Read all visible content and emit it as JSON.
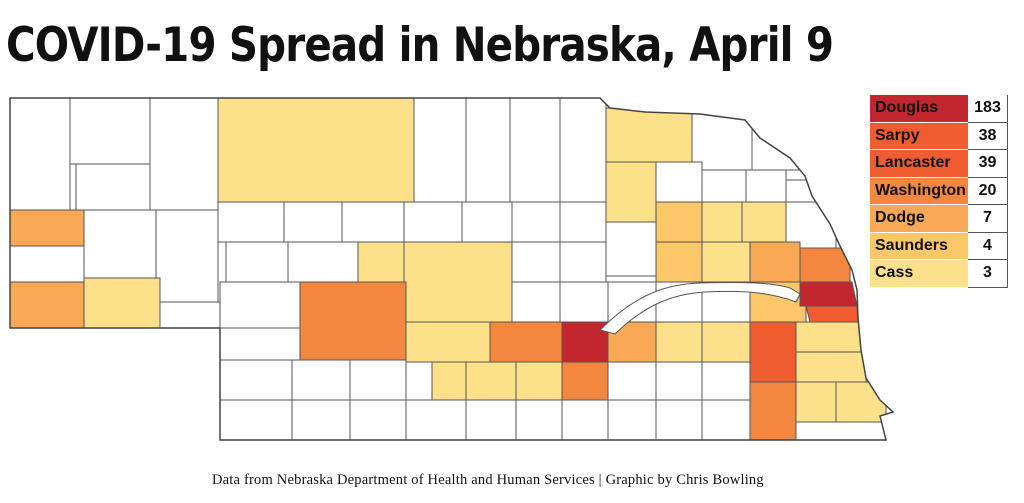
{
  "title": "COVID-19 Spread in Nebraska, April 9",
  "footer": "Data from Nebraska Department of Health and Human Services | Graphic by Chris Bowling",
  "colors": {
    "douglas": "#c1272d",
    "sarpy": "#ee5c2f",
    "lancaster": "#ee5c2f",
    "washington": "#f4873f",
    "dodge": "#f9a856",
    "saunders": "#fbc768",
    "cass": "#fde08a",
    "none": "#ffffff",
    "border": "#555555"
  },
  "legend": [
    {
      "name": "Douglas",
      "count": "183",
      "color": "#c1272d"
    },
    {
      "name": "Sarpy",
      "count": "38",
      "color": "#ee5c2f"
    },
    {
      "name": "Lancaster",
      "count": "39",
      "color": "#ee5c2f"
    },
    {
      "name": "Washington",
      "count": "20",
      "color": "#f4873f"
    },
    {
      "name": "Dodge",
      "count": "7",
      "color": "#f9a856"
    },
    {
      "name": "Saunders",
      "count": "4",
      "color": "#fbc768"
    },
    {
      "name": "Cass",
      "count": "3",
      "color": "#fde08a"
    }
  ]
}
